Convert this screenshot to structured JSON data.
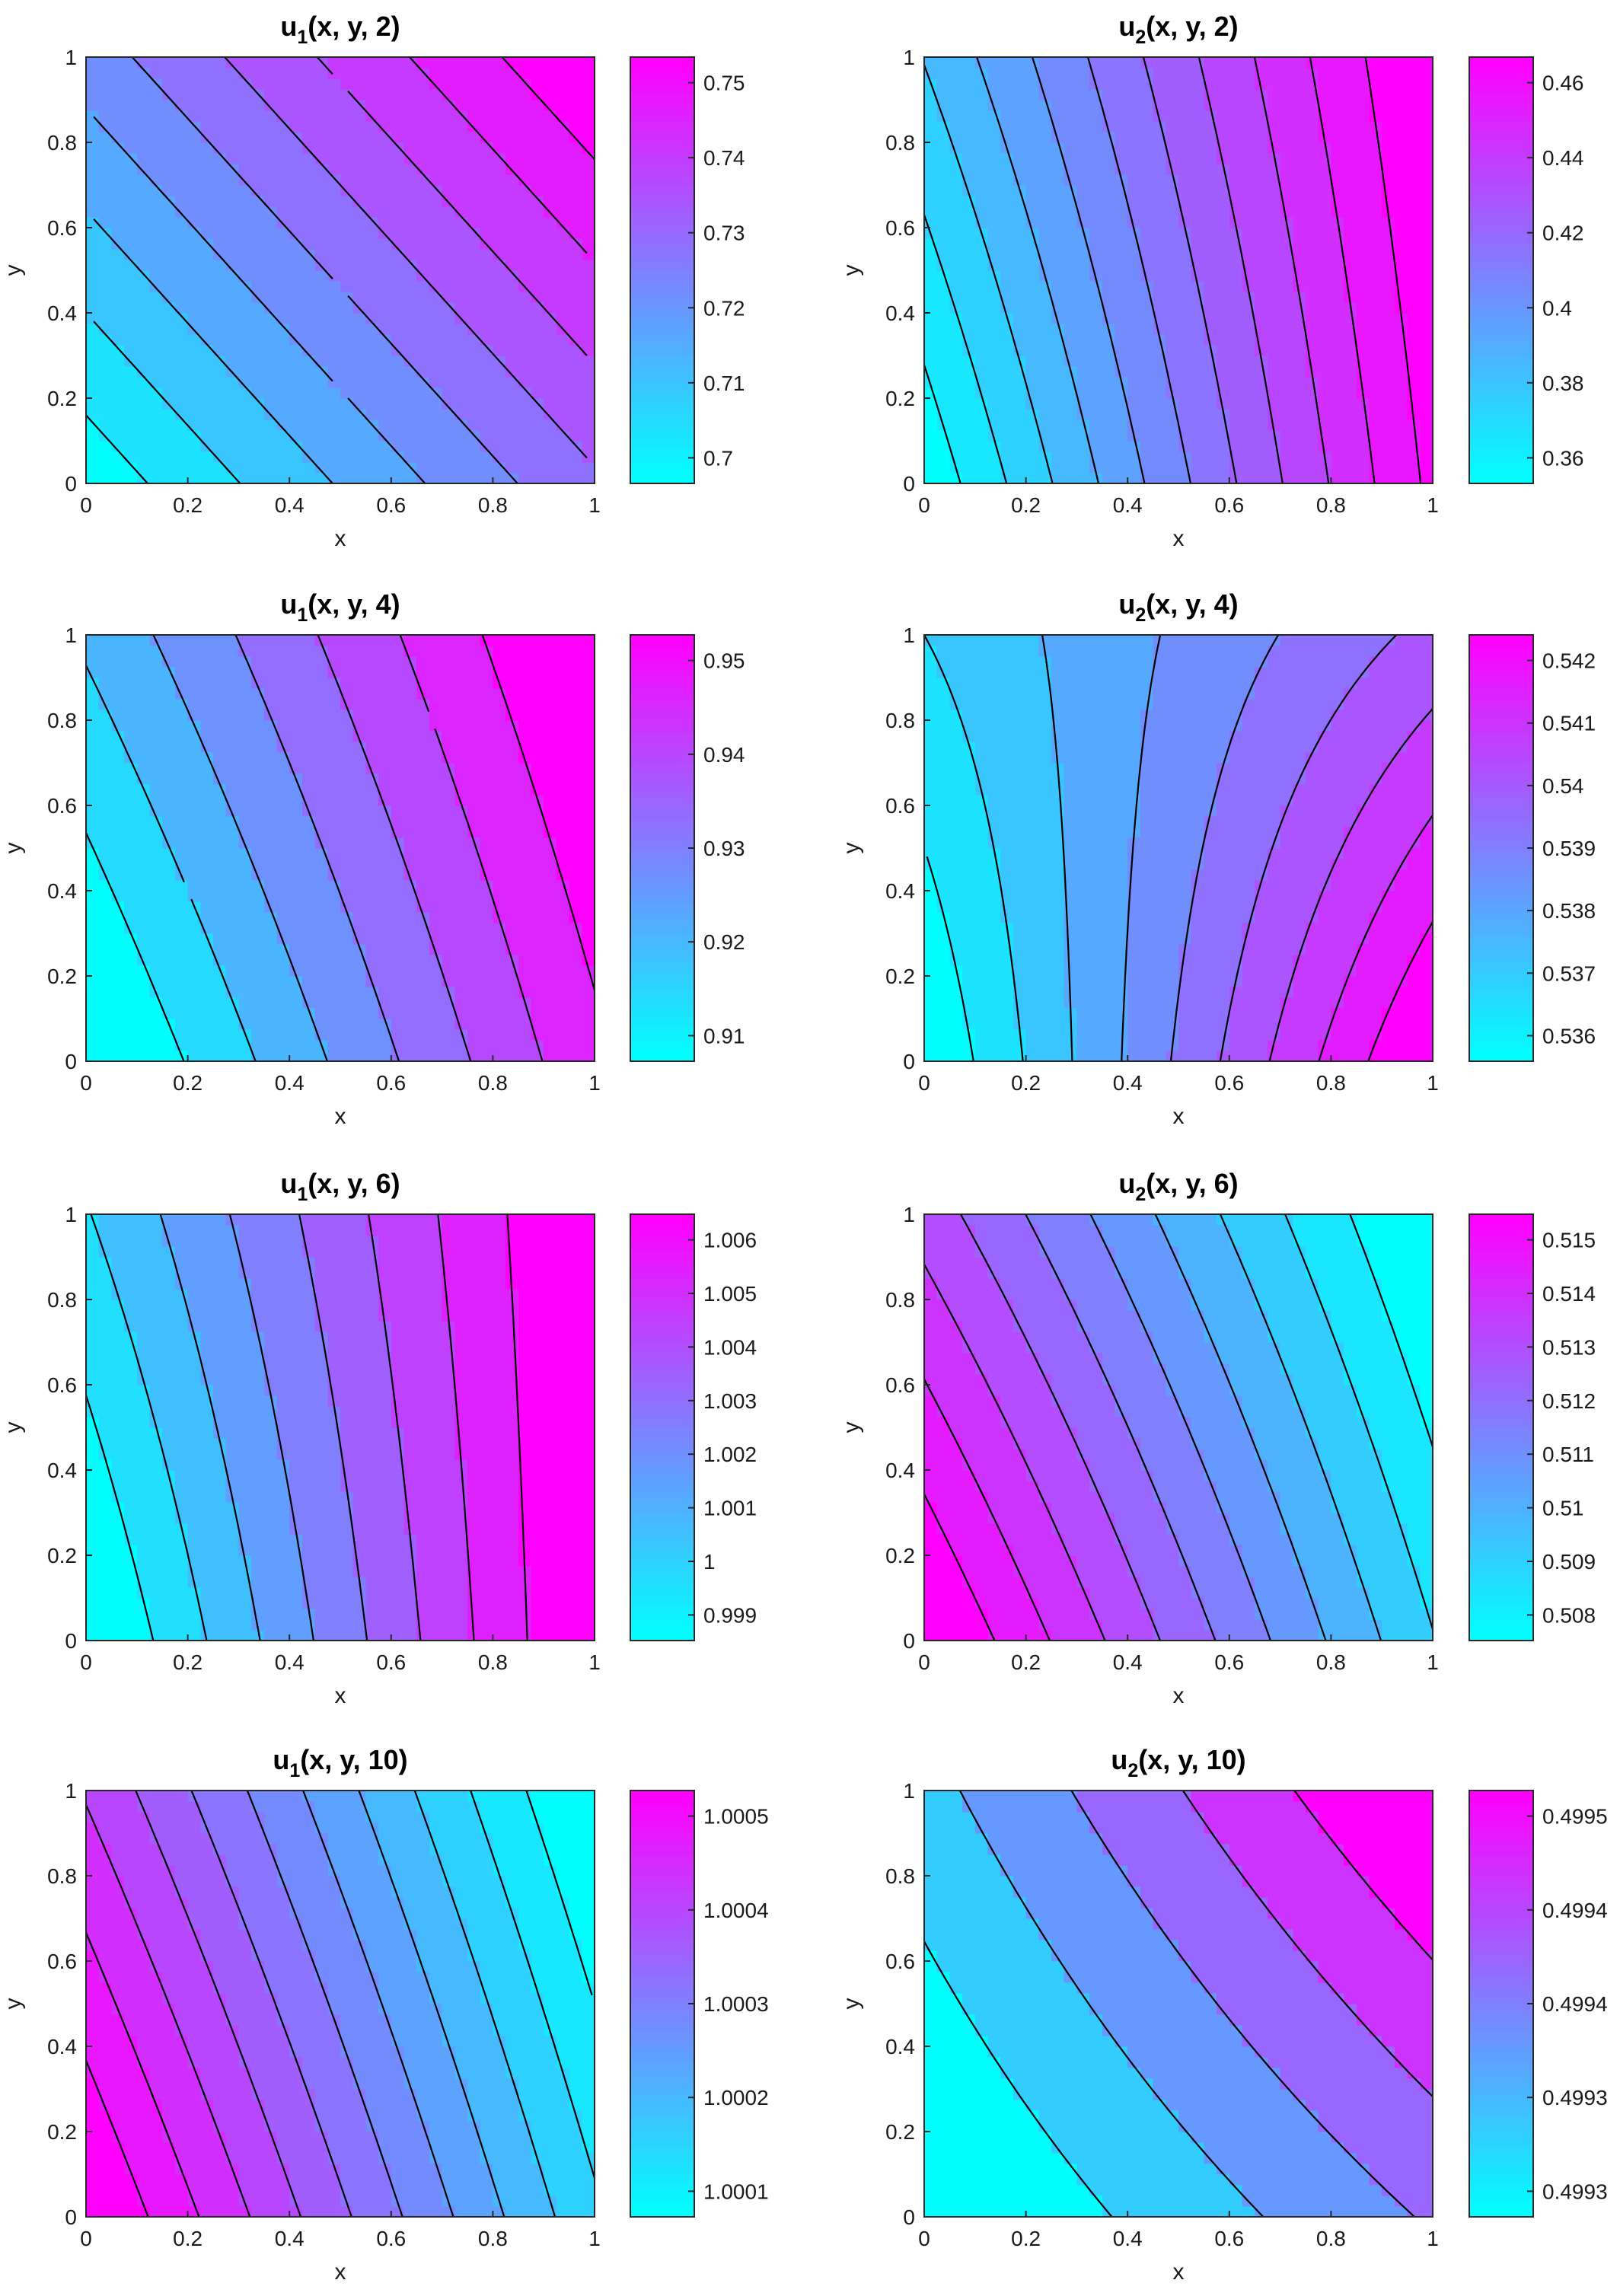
{
  "colors": {
    "low": "#00ffff",
    "high": "#ff00ff",
    "contour": "#000000",
    "axis": "#262626"
  },
  "colormap": "cool",
  "chart_data": [
    {
      "type": "contour",
      "id": "u1_t2",
      "title": {
        "base": "u",
        "sub": "1",
        "args": "(x, y, 2)"
      },
      "xlabel": "x",
      "ylabel": "y",
      "xlim": [
        0,
        1
      ],
      "ylim": [
        0,
        1
      ],
      "xticks": [
        "0",
        "0.2",
        "0.4",
        "0.6",
        "0.8",
        "1"
      ],
      "yticks": [
        "0",
        "0.2",
        "0.4",
        "0.6",
        "0.8",
        "1"
      ],
      "corner_values": {
        "x0y0": 0.699,
        "x1y0": 0.732,
        "x0y1": 0.724,
        "x1y1": 0.757
      },
      "clim": [
        0.697,
        0.757
      ],
      "levels": 10,
      "colorbar_ticks": [
        "0.7",
        "0.71",
        "0.72",
        "0.73",
        "0.74",
        "0.75"
      ]
    },
    {
      "type": "contour",
      "id": "u2_t2",
      "title": {
        "base": "u",
        "sub": "2",
        "args": "(x, y, 2)"
      },
      "xlabel": "x",
      "ylabel": "y",
      "xlim": [
        0,
        1
      ],
      "ylim": [
        0,
        1
      ],
      "xticks": [
        "0",
        "0.2",
        "0.4",
        "0.6",
        "0.8",
        "1"
      ],
      "yticks": [
        "0",
        "0.2",
        "0.4",
        "0.6",
        "0.8",
        "1"
      ],
      "corner_values": {
        "x0y0": 0.358,
        "x1y0": 0.463,
        "x0y1": 0.385,
        "x1y1": 0.472
      },
      "clim": [
        0.356,
        0.47
      ],
      "levels": 12,
      "colorbar_ticks": [
        "0.36",
        "0.38",
        "0.4",
        "0.42",
        "0.44",
        "0.46"
      ]
    },
    {
      "type": "contour",
      "id": "u1_t4",
      "title": {
        "base": "u",
        "sub": "1",
        "args": "(x, y, 4)"
      },
      "xlabel": "x",
      "ylabel": "y",
      "xlim": [
        0,
        1
      ],
      "ylim": [
        0,
        1
      ],
      "xticks": [
        "0",
        "0.2",
        "0.4",
        "0.6",
        "0.8",
        "1"
      ],
      "yticks": [
        "0",
        "0.2",
        "0.4",
        "0.6",
        "0.8",
        "1"
      ],
      "corner_values": {
        "x0y0": 0.904,
        "x1y0": 0.943,
        "x0y1": 0.918,
        "x1y1": 0.952
      },
      "clim": [
        0.906,
        0.95
      ],
      "levels": 8,
      "colorbar_ticks": [
        "0.91",
        "0.92",
        "0.93",
        "0.94",
        "0.95"
      ]
    },
    {
      "type": "contour",
      "id": "u2_t4",
      "title": {
        "base": "u",
        "sub": "2",
        "args": "(x, y, 4)"
      },
      "xlabel": "x",
      "ylabel": "y",
      "xlim": [
        0,
        1
      ],
      "ylim": [
        0,
        1
      ],
      "xticks": [
        "0",
        "0.2",
        "0.4",
        "0.6",
        "0.8",
        "1"
      ],
      "yticks": [
        "0",
        "0.2",
        "0.4",
        "0.6",
        "0.8",
        "1"
      ],
      "corner_values": {
        "x0y0": 0.5355,
        "x1y0": 0.5422,
        "x0y1": 0.5368,
        "x1y1": 0.5396
      },
      "clim": [
        0.5355,
        0.542
      ],
      "levels": 10,
      "colorbar_ticks": [
        "0.536",
        "0.537",
        "0.538",
        "0.539",
        "0.54",
        "0.541",
        "0.542"
      ]
    },
    {
      "type": "contour",
      "id": "u1_t6",
      "title": {
        "base": "u",
        "sub": "1",
        "args": "(x, y, 6)"
      },
      "xlabel": "x",
      "ylabel": "y",
      "xlim": [
        0,
        1
      ],
      "ylim": [
        0,
        1
      ],
      "xticks": [
        "0",
        "0.2",
        "0.4",
        "0.6",
        "0.8",
        "1"
      ],
      "yticks": [
        "0",
        "0.2",
        "0.4",
        "0.6",
        "0.8",
        "1"
      ],
      "corner_values": {
        "x0y0": 0.9988,
        "x1y0": 1.0062,
        "x0y1": 1.0005,
        "x1y1": 1.0062
      },
      "clim": [
        0.999,
        1.006
      ],
      "levels": 9,
      "colorbar_ticks": [
        "0.999",
        "1",
        "1.001",
        "1.002",
        "1.003",
        "1.004",
        "1.005",
        "1.006"
      ]
    },
    {
      "type": "contour",
      "id": "u2_t6",
      "title": {
        "base": "u",
        "sub": "2",
        "args": "(x, y, 6)"
      },
      "xlabel": "x",
      "ylabel": "y",
      "xlim": [
        0,
        1
      ],
      "ylim": [
        0,
        1
      ],
      "xticks": [
        "0",
        "0.2",
        "0.4",
        "0.6",
        "0.8",
        "1"
      ],
      "yticks": [
        "0",
        "0.2",
        "0.4",
        "0.6",
        "0.8",
        "1"
      ],
      "corner_values": {
        "x0y0": 0.5152,
        "x1y0": 0.5085,
        "x0y1": 0.5125,
        "x1y1": 0.5068
      },
      "clim": [
        0.507,
        0.515
      ],
      "levels": 11,
      "colorbar_ticks": [
        "0.508",
        "0.509",
        "0.51",
        "0.511",
        "0.512",
        "0.513",
        "0.514",
        "0.515"
      ]
    },
    {
      "type": "contour",
      "id": "u1_t10",
      "title": {
        "base": "u",
        "sub": "1",
        "args": "(x, y, 10)"
      },
      "xlabel": "x",
      "ylabel": "y",
      "xlim": [
        0,
        1
      ],
      "ylim": [
        0,
        1
      ],
      "xticks": [
        "0",
        "0.2",
        "0.4",
        "0.6",
        "0.8",
        "1"
      ],
      "yticks": [
        "0",
        "0.2",
        "0.4",
        "0.6",
        "0.8",
        "1"
      ],
      "corner_values": {
        "x0y0": 1.00057,
        "x1y0": 1.00012,
        "x0y1": 1.00042,
        "x1y1": 1.00001
      },
      "clim": [
        1.00002,
        1.00056
      ],
      "levels": 12,
      "colorbar_ticks": [
        "1.0001",
        "1.0002",
        "1.0003",
        "1.0004",
        "1.0005"
      ]
    },
    {
      "type": "contour",
      "id": "u2_t10",
      "title": {
        "base": "u",
        "sub": "2",
        "args": "(x, y, 10)"
      },
      "xlabel": "x",
      "ylabel": "y",
      "xlim": [
        0,
        1
      ],
      "ylim": [
        0,
        1
      ],
      "xticks": [
        "0",
        "0.2",
        "0.4",
        "0.6",
        "0.8",
        "1"
      ],
      "yticks": [
        "0",
        "0.2",
        "0.4",
        "0.6",
        "0.8",
        "1"
      ],
      "corner_values": {
        "x0y0": 0.49924,
        "x1y0": 0.49938,
        "x0y1": 0.49932,
        "x1y1": 0.49951
      },
      "clim": [
        0.49925,
        0.4995
      ],
      "levels": 6,
      "colorbar_ticks": [
        "0.4993",
        "0.4993",
        "0.4994",
        "0.4994",
        "0.4995"
      ]
    }
  ]
}
